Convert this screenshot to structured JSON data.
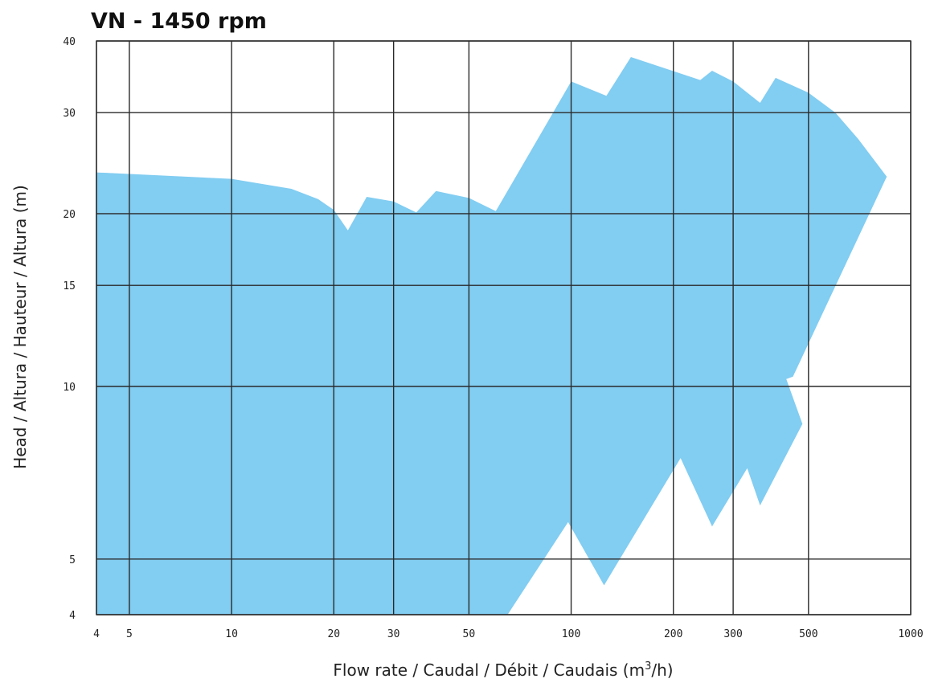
{
  "chart_data": {
    "type": "area",
    "title": "VN - 1450 rpm",
    "xlabel": "Flow rate / Caudal / Débit / Caudais (m",
    "xlabel_sup": "3",
    "xlabel_end": "/h)",
    "ylabel": "Head / Altura / Hauteur / Altura (m)",
    "x_scale": "log",
    "y_scale": "log",
    "xlim": [
      4,
      1000
    ],
    "ylim": [
      4,
      40
    ],
    "x_ticks": [
      4,
      5,
      10,
      20,
      30,
      50,
      100,
      200,
      300,
      500,
      1000
    ],
    "y_ticks": [
      4,
      5,
      10,
      15,
      20,
      30,
      40
    ],
    "grid": true,
    "fill_color": "#82CDF2",
    "grid_color": "#2a2a2a",
    "series": [
      {
        "points": [
          [
            4,
            4
          ],
          [
            4,
            23.6
          ],
          [
            10,
            23
          ],
          [
            15,
            22.1
          ],
          [
            18,
            21.2
          ],
          [
            20,
            20.3
          ],
          [
            22,
            18.7
          ],
          [
            25,
            21.4
          ],
          [
            30,
            21
          ],
          [
            35,
            20.1
          ],
          [
            40,
            21.9
          ],
          [
            50,
            21.3
          ],
          [
            60,
            20.2
          ],
          [
            100,
            34
          ],
          [
            127,
            32.1
          ],
          [
            150,
            37.5
          ],
          [
            240,
            34.2
          ],
          [
            260,
            35.5
          ],
          [
            300,
            34
          ],
          [
            360,
            31.2
          ],
          [
            400,
            34.5
          ],
          [
            500,
            32.5
          ],
          [
            600,
            30
          ],
          [
            700,
            27
          ],
          [
            850,
            23.2
          ],
          [
            450,
            10.4
          ],
          [
            430,
            10.3
          ],
          [
            480,
            8.6
          ],
          [
            360,
            6.2
          ],
          [
            330,
            7.2
          ],
          [
            260,
            5.7
          ],
          [
            210,
            7.5
          ],
          [
            125,
            4.5
          ],
          [
            98,
            5.8
          ],
          [
            65,
            4
          ]
        ]
      }
    ]
  }
}
